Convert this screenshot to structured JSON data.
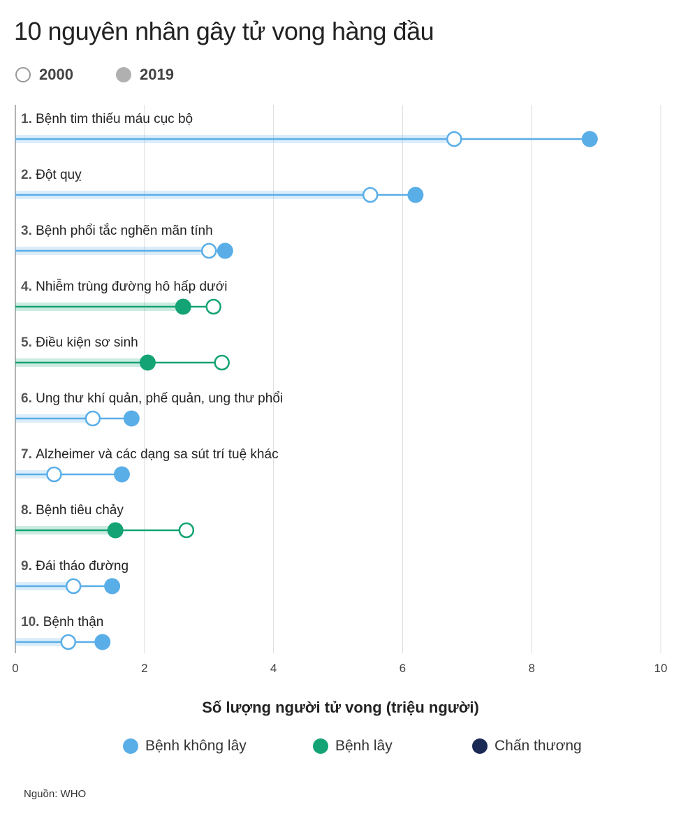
{
  "chart_data": {
    "type": "dumbbell",
    "title": "10 nguyên nhân gây tử vong hàng đầu",
    "xlabel": "Số lượng người tử vong (triệu người)",
    "xlim": [
      0,
      10
    ],
    "xticks": [
      "0",
      "2",
      "4",
      "6",
      "8",
      "10"
    ],
    "grid": true,
    "year_legend": [
      {
        "name": "2000",
        "style": "open"
      },
      {
        "name": "2019",
        "style": "filled",
        "color": "#b0b0b0"
      }
    ],
    "category_legend": [
      {
        "name": "Bệnh không lây",
        "color": "#5aaee8"
      },
      {
        "name": "Bệnh lây",
        "color": "#14a374"
      },
      {
        "name": "Chấn thương",
        "color": "#1b2a55"
      }
    ],
    "rows": [
      {
        "rank": "1.",
        "label": "Bệnh tim thiếu máu cục bộ",
        "group": 0,
        "v2000": 6.8,
        "v2019": 8.9
      },
      {
        "rank": "2.",
        "label": "Đột quỵ",
        "group": 0,
        "v2000": 5.5,
        "v2019": 6.2
      },
      {
        "rank": "3.",
        "label": "Bệnh phổi tắc nghẽn mãn tính",
        "group": 0,
        "v2000": 3.0,
        "v2019": 3.25
      },
      {
        "rank": "4.",
        "label": "Nhiễm trùng đường hô hấp dưới",
        "group": 1,
        "v2000": 3.07,
        "v2019": 2.6
      },
      {
        "rank": "5.",
        "label": "Điều kiện sơ sinh",
        "group": 1,
        "v2000": 3.2,
        "v2019": 2.05
      },
      {
        "rank": "6.",
        "label": "Ung thư khí quản, phế quản, ung thư phổi",
        "group": 0,
        "v2000": 1.2,
        "v2019": 1.8
      },
      {
        "rank": "7.",
        "label": "Alzheimer và các dạng sa sút trí tuệ khác",
        "group": 0,
        "v2000": 0.6,
        "v2019": 1.65
      },
      {
        "rank": "8.",
        "label": "Bệnh tiêu chảy",
        "group": 1,
        "v2000": 2.65,
        "v2019": 1.55
      },
      {
        "rank": "9.",
        "label": "Đái tháo đường",
        "group": 0,
        "v2000": 0.9,
        "v2019": 1.5
      },
      {
        "rank": "10.",
        "label": "Bệnh thận",
        "group": 0,
        "v2000": 0.82,
        "v2019": 1.35
      }
    ]
  },
  "source": "Nguồn: WHO"
}
